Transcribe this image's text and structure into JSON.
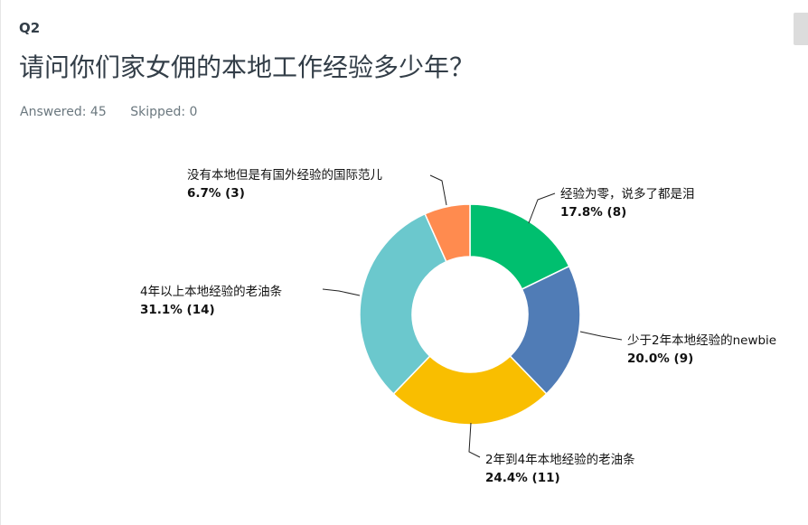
{
  "question": {
    "number": "Q2",
    "title": "请问你们家女佣的本地工作经验多少年？",
    "answered": "Answered: 45",
    "skipped": "Skipped: 0"
  },
  "chart_data": {
    "type": "pie",
    "style": "donut",
    "slices": [
      {
        "label": "经验为零，说多了都是泪",
        "percent": 17.8,
        "count": 8,
        "value_text": "17.8% (8)",
        "color": "#00bf6f"
      },
      {
        "label": "少于2年本地经验的newbie",
        "percent": 20.0,
        "count": 9,
        "value_text": "20.0% (9)",
        "color": "#507cb6"
      },
      {
        "label": "2年到4年本地经验的老油条",
        "percent": 24.4,
        "count": 11,
        "value_text": "24.4% (11)",
        "color": "#f9be00"
      },
      {
        "label": "4年以上本地经验的老油条",
        "percent": 31.1,
        "count": 14,
        "value_text": "31.1% (14)",
        "color": "#6bc8cd"
      },
      {
        "label": "没有本地但是有国外经验的国际范儿",
        "percent": 6.7,
        "count": 3,
        "value_text": "6.7% (3)",
        "color": "#ff8b4f"
      }
    ]
  }
}
